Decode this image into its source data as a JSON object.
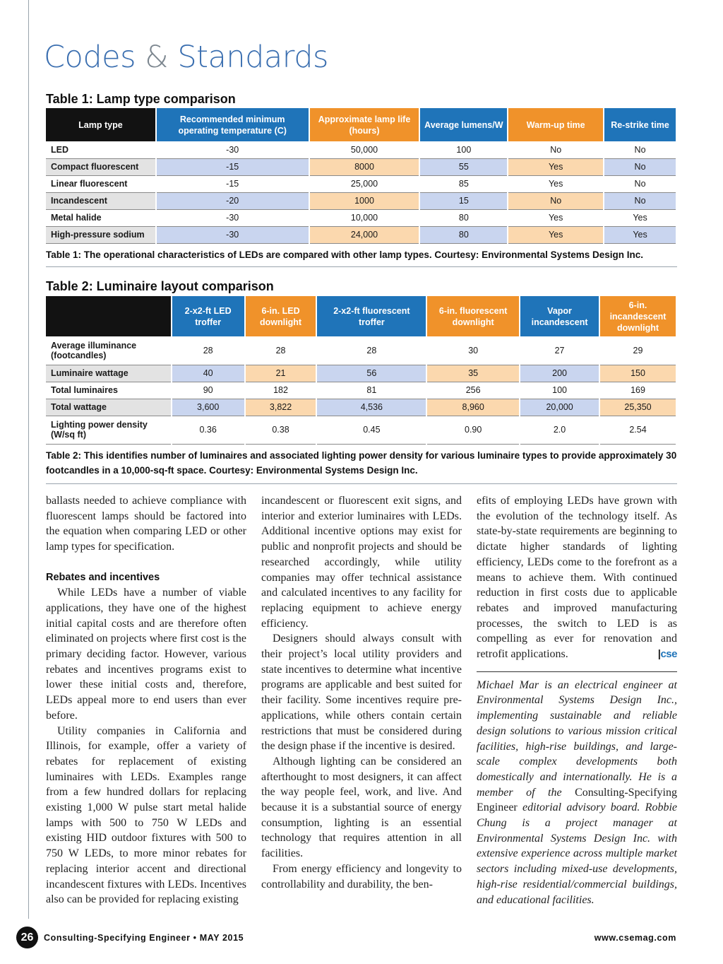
{
  "section_title": {
    "part1": "Codes",
    "amp": "&",
    "part2": "Standards"
  },
  "table1": {
    "title": "Table 1: Lamp type comparison",
    "headers": [
      "Lamp type",
      "Recommended minimum operating temperature (C)",
      "Approximate lamp life (hours)",
      "Average lumens/W",
      "Warm-up time",
      "Re-strike time"
    ],
    "rows": [
      [
        "LED",
        "-30",
        "50,000",
        "100",
        "No",
        "No"
      ],
      [
        "Compact fluorescent",
        "-15",
        "8000",
        "55",
        "Yes",
        "No"
      ],
      [
        "Linear fluorescent",
        "-15",
        "25,000",
        "85",
        "Yes",
        "No"
      ],
      [
        "Incandescent",
        "-20",
        "1000",
        "15",
        "No",
        "No"
      ],
      [
        "Metal halide",
        "-30",
        "10,000",
        "80",
        "Yes",
        "Yes"
      ],
      [
        "High-pressure sodium",
        "-30",
        "24,000",
        "80",
        "Yes",
        "Yes"
      ]
    ],
    "caption": "Table 1: The operational characteristics of LEDs are compared with other lamp types. Courtesy: Environmental Systems Design Inc."
  },
  "table2": {
    "title": "Table 2: Luminaire layout comparison",
    "headers": [
      "",
      "2-x2-ft LED troffer",
      "6-in. LED downlight",
      "2-x2-ft fluorescent troffer",
      "6-in. fluorescent downlight",
      "Vapor incandescent",
      "6-in. incandescent downlight"
    ],
    "rows": [
      [
        "Average illuminance (footcandles)",
        "28",
        "28",
        "28",
        "30",
        "27",
        "29"
      ],
      [
        "Luminaire wattage",
        "40",
        "21",
        "56",
        "35",
        "200",
        "150"
      ],
      [
        "Total luminaires",
        "90",
        "182",
        "81",
        "256",
        "100",
        "169"
      ],
      [
        "Total wattage",
        "3,600",
        "3,822",
        "4,536",
        "8,960",
        "20,000",
        "25,350"
      ],
      [
        "Lighting power density (W/sq ft)",
        "0.36",
        "0.38",
        "0.45",
        "0.90",
        "2.0",
        "2.54"
      ]
    ],
    "caption": "Table 2: This identifies number of luminaires and associated lighting power density for various luminaire types to provide approximately 30 footcandles in a 10,000-sq-ft space. Courtesy: Environmental Systems Design Inc."
  },
  "article": {
    "col1_p1": "ballasts needed to achieve compliance with fluorescent lamps should be factored into the equation when comparing LED or other lamp types for specification.",
    "heading": "Rebates and incentives",
    "col1_p2": "While LEDs have a number of viable applications, they have one of the highest initial capital costs and are therefore often eliminated on projects where first cost is the primary deciding factor. However, various rebates and incentives programs exist to lower these initial costs and, therefore, LEDs appeal more to end users than ever before.",
    "col1_p3": "Utility companies in California and Illinois, for example, offer a variety of rebates for replacement of existing luminaires with LEDs. Examples range from a few hundred dollars for replacing existing 1,000 W pulse start metal halide lamps with 500 to 750 W LEDs and existing HID outdoor fixtures with 500 to 750 W LEDs, to more minor rebates for replacing interior accent and directional incandescent fixtures with LEDs. Incentives also can be provided for replacing existing",
    "col2_p1": "incandescent or fluorescent exit signs, and interior and exterior luminaires with LEDs. Additional incentive options may exist for public and nonprofit projects and should be researched accordingly, while utility companies may offer technical assistance and calculated incentives to any facility for replacing equipment to achieve energy efficiency.",
    "col2_p2": "Designers should always consult with their project’s local utility providers and state incentives to determine what incentive programs are applicable and best suited for their facility. Some incentives require pre-applications, while others contain certain restrictions that must be considered during the design phase if the incentive is desired.",
    "col2_p3": "Although lighting can be considered an afterthought to most designers, it can affect the way people feel, work, and live. And because it is a substantial source of energy consumption, lighting is an essential technology that requires attention in all facilities.",
    "col2_p4": "From energy efficiency and longevity to controllability and durability, the ben-",
    "col3_p1": "efits of employing LEDs have grown with the evolution of the technology itself. As state-by-state requirements are beginning to dictate higher standards of lighting efficiency, LEDs come to the forefront as a means to achieve them. With continued reduction in first costs due to applicable rebates and improved manufacturing processes, the switch to LED is as compelling as ever for renovation and retrofit applications.",
    "end_mark_bar": "|",
    "end_mark": "cse",
    "bio_a": "Michael Mar is an electrical engineer at Environmental Systems Design Inc., implementing sustainable and reliable design solutions to various mission critical facilities, high-rise buildings, and large-scale complex developments both domestically and internationally. He is a member of the ",
    "bio_pub": "Consulting-Specifying Engineer",
    "bio_b": " editorial advisory board. Robbie Chung is a project manager at Environmental Systems Design Inc. with extensive experience across multiple market sectors including mixed-use developments, high-rise residential/commercial buildings, and educational facilities."
  },
  "footer": {
    "page_number": "26",
    "left": "Consulting-Specifying Engineer • MAY 2015",
    "right": "www.csemag.com"
  }
}
